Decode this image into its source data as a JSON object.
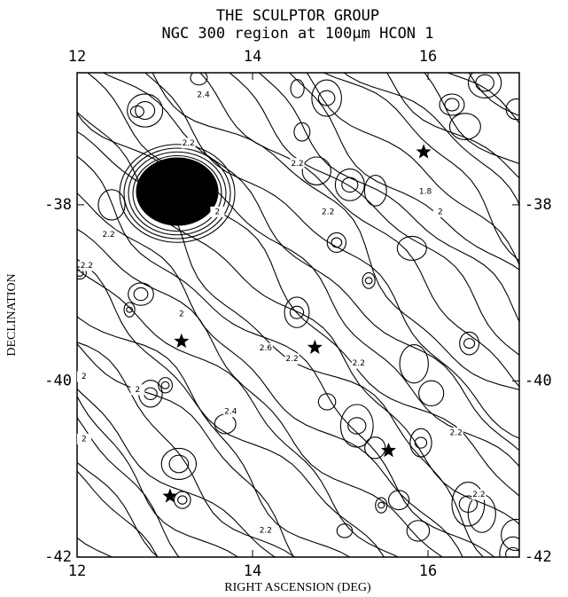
{
  "chart_data": {
    "type": "contour",
    "title": "THE SCULPTOR GROUP",
    "subtitle": "NGC 300 region at 100μm HCON 1",
    "x_label": "RIGHT ASCENSION (DEG)",
    "y_label": "DECLINATION",
    "xlim": [
      12,
      17.04
    ],
    "ylim": [
      -42,
      -36.5
    ],
    "xticks": [
      12,
      14,
      16
    ],
    "yticks": [
      -42,
      -40,
      -38
    ],
    "stars": {
      "x": [
        13.19,
        14.71,
        15.95,
        15.55,
        13.06
      ],
      "y": [
        -39.55,
        -39.62,
        -37.4,
        -40.79,
        -41.31
      ]
    },
    "contour_labels": {
      "x": [
        13.27,
        13.6,
        12.36,
        12.11,
        13.19,
        12.69,
        12.08,
        14.15,
        14.45,
        15.21,
        16.32,
        14.86,
        14.51,
        16.14,
        16.58,
        14.15,
        15.97,
        13.44,
        12.08,
        13.75
      ],
      "y": [
        -37.3,
        -38.08,
        -38.34,
        -38.69,
        -39.24,
        -40.1,
        -39.95,
        -39.63,
        -39.75,
        -39.8,
        -40.59,
        -38.08,
        -37.53,
        -38.08,
        -41.29,
        -41.7,
        -37.85,
        -36.75,
        -40.66,
        -40.35
      ],
      "levels": [
        2.2,
        2.0,
        2.2,
        2.2,
        2.0,
        2.0,
        2.0,
        2.6,
        2.2,
        2.2,
        2.2,
        2.2,
        2.2,
        2.0,
        2.2,
        2.2,
        1.8,
        2.4,
        2.0,
        2.4
      ]
    }
  }
}
